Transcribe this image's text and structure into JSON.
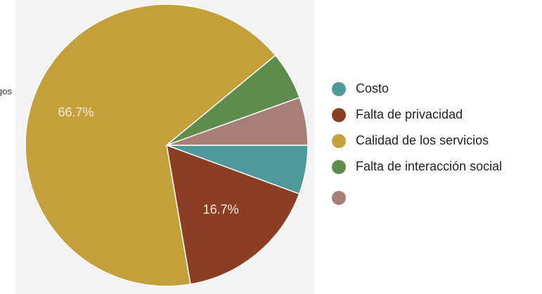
{
  "chart_data": {
    "type": "pie",
    "annotation": "gos",
    "categories": [
      "Costo",
      "Falta de privacidad",
      "Calidad de los servicios",
      "Falta de interacción social",
      null
    ],
    "values": [
      5.6,
      16.7,
      66.7,
      5.5,
      5.5
    ],
    "value_labels": [
      null,
      "16.7%",
      "66.7%",
      null,
      null
    ],
    "colors": [
      "#4e9a9a",
      "#8a3f24",
      "#c4a03a",
      "#5e8c4d",
      "#a87f77"
    ],
    "start_angle": 0,
    "direction": "clockwise"
  }
}
